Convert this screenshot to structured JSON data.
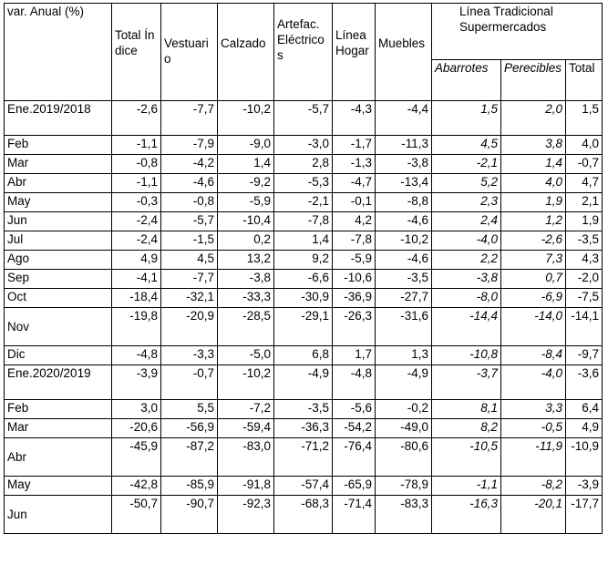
{
  "header": {
    "var_label": "var. Anual (%)",
    "col_total_indice": "Total Índice",
    "col_vestuario": "Vestuario",
    "col_calzado": "Calzado",
    "col_artefactos": "Artefac. Eléctricos",
    "col_linea_hogar": "Línea Hogar",
    "col_muebles": "Muebles",
    "group_label": "Línea Tradicional Supermercados",
    "sub_abarrotes": "Abarrotes",
    "sub_perecibles": "Perecibles",
    "sub_total": "Total"
  },
  "rows": [
    {
      "label": "Ene.2019/2018",
      "total": "-2,6",
      "vest": "-7,7",
      "calz": "-10,2",
      "art": "-5,7",
      "hogar": "-4,3",
      "mueb": "-4,4",
      "abar": "1,5",
      "perec": "2,0",
      "tot": "1,5"
    },
    {
      "label": "Feb",
      "total": "-1,1",
      "vest": "-7,9",
      "calz": "-9,0",
      "art": "-3,0",
      "hogar": "-1,7",
      "mueb": "-11,3",
      "abar": "4,5",
      "perec": "3,8",
      "tot": "4,0"
    },
    {
      "label": "Mar",
      "total": "-0,8",
      "vest": "-4,2",
      "calz": "1,4",
      "art": "2,8",
      "hogar": "-1,3",
      "mueb": "-3,8",
      "abar": "-2,1",
      "perec": "1,4",
      "tot": "-0,7"
    },
    {
      "label": "Abr",
      "total": "-1,1",
      "vest": "-4,6",
      "calz": "-9,2",
      "art": "-5,3",
      "hogar": "-4,7",
      "mueb": "-13,4",
      "abar": "5,2",
      "perec": "4,0",
      "tot": "4,7"
    },
    {
      "label": "May",
      "total": "-0,3",
      "vest": "-0,8",
      "calz": "-5,9",
      "art": "-2,1",
      "hogar": "-0,1",
      "mueb": "-8,8",
      "abar": "2,3",
      "perec": "1,9",
      "tot": "2,1"
    },
    {
      "label": "Jun",
      "total": "-2,4",
      "vest": "-5,7",
      "calz": "-10,4",
      "art": "-7,8",
      "hogar": "4,2",
      "mueb": "-4,6",
      "abar": "2,4",
      "perec": "1,2",
      "tot": "1,9"
    },
    {
      "label": "Jul",
      "total": "-2,4",
      "vest": "-1,5",
      "calz": "0,2",
      "art": "1,4",
      "hogar": "-7,8",
      "mueb": "-10,2",
      "abar": "-4,0",
      "perec": "-2,6",
      "tot": "-3,5"
    },
    {
      "label": "Ago",
      "total": "4,9",
      "vest": "4,5",
      "calz": "13,2",
      "art": "9,2",
      "hogar": "-5,9",
      "mueb": "-4,6",
      "abar": "2,2",
      "perec": "7,3",
      "tot": "4,3"
    },
    {
      "label": "Sep",
      "total": "-4,1",
      "vest": "-7,7",
      "calz": "-3,8",
      "art": "-6,6",
      "hogar": "-10,6",
      "mueb": "-3,5",
      "abar": "-3,8",
      "perec": "0,7",
      "tot": "-2,0"
    },
    {
      "label": "Oct",
      "total": "-18,4",
      "vest": "-32,1",
      "calz": "-33,3",
      "art": "-30,9",
      "hogar": "-36,9",
      "mueb": "-27,7",
      "abar": "-8,0",
      "perec": "-6,9",
      "tot": "-7,5"
    },
    {
      "label": "Nov",
      "total": "-19,8",
      "vest": "-20,9",
      "calz": "-28,5",
      "art": "-29,1",
      "hogar": "-26,3",
      "mueb": "-31,6",
      "abar": "-14,4",
      "perec": "-14,0",
      "tot": "-14,1"
    },
    {
      "label": "Dic",
      "total": "-4,8",
      "vest": "-3,3",
      "calz": "-5,0",
      "art": "6,8",
      "hogar": "1,7",
      "mueb": "1,3",
      "abar": "-10,8",
      "perec": "-8,4",
      "tot": "-9,7"
    },
    {
      "label": "Ene.2020/2019",
      "total": "-3,9",
      "vest": "-0,7",
      "calz": "-10,2",
      "art": "-4,9",
      "hogar": "-4,8",
      "mueb": "-4,9",
      "abar": "-3,7",
      "perec": "-4,0",
      "tot": "-3,6"
    },
    {
      "label": "Feb",
      "total": "3,0",
      "vest": "5,5",
      "calz": "-7,2",
      "art": "-3,5",
      "hogar": "-5,6",
      "mueb": "-0,2",
      "abar": "8,1",
      "perec": "3,3",
      "tot": "6,4"
    },
    {
      "label": "Mar",
      "total": "-20,6",
      "vest": "-56,9",
      "calz": "-59,4",
      "art": "-36,3",
      "hogar": "-54,2",
      "mueb": "-49,0",
      "abar": "8,2",
      "perec": "-0,5",
      "tot": "4,9"
    },
    {
      "label": "Abr",
      "total": "-45,9",
      "vest": "-87,2",
      "calz": "-83,0",
      "art": "-71,2",
      "hogar": "-76,4",
      "mueb": "-80,6",
      "abar": "-10,5",
      "perec": "-11,9",
      "tot": "-10,9"
    },
    {
      "label": "May",
      "total": "-42,8",
      "vest": "-85,9",
      "calz": "-91,8",
      "art": "-57,4",
      "hogar": "-65,9",
      "mueb": "-78,9",
      "abar": "-1,1",
      "perec": "-8,2",
      "tot": "-3,9"
    },
    {
      "label": "Jun",
      "total": "-50,7",
      "vest": "-90,7",
      "calz": "-92,3",
      "art": "-68,3",
      "hogar": "-71,4",
      "mueb": "-83,3",
      "abar": "-16,3",
      "perec": "-20,1",
      "tot": "-17,7"
    }
  ]
}
